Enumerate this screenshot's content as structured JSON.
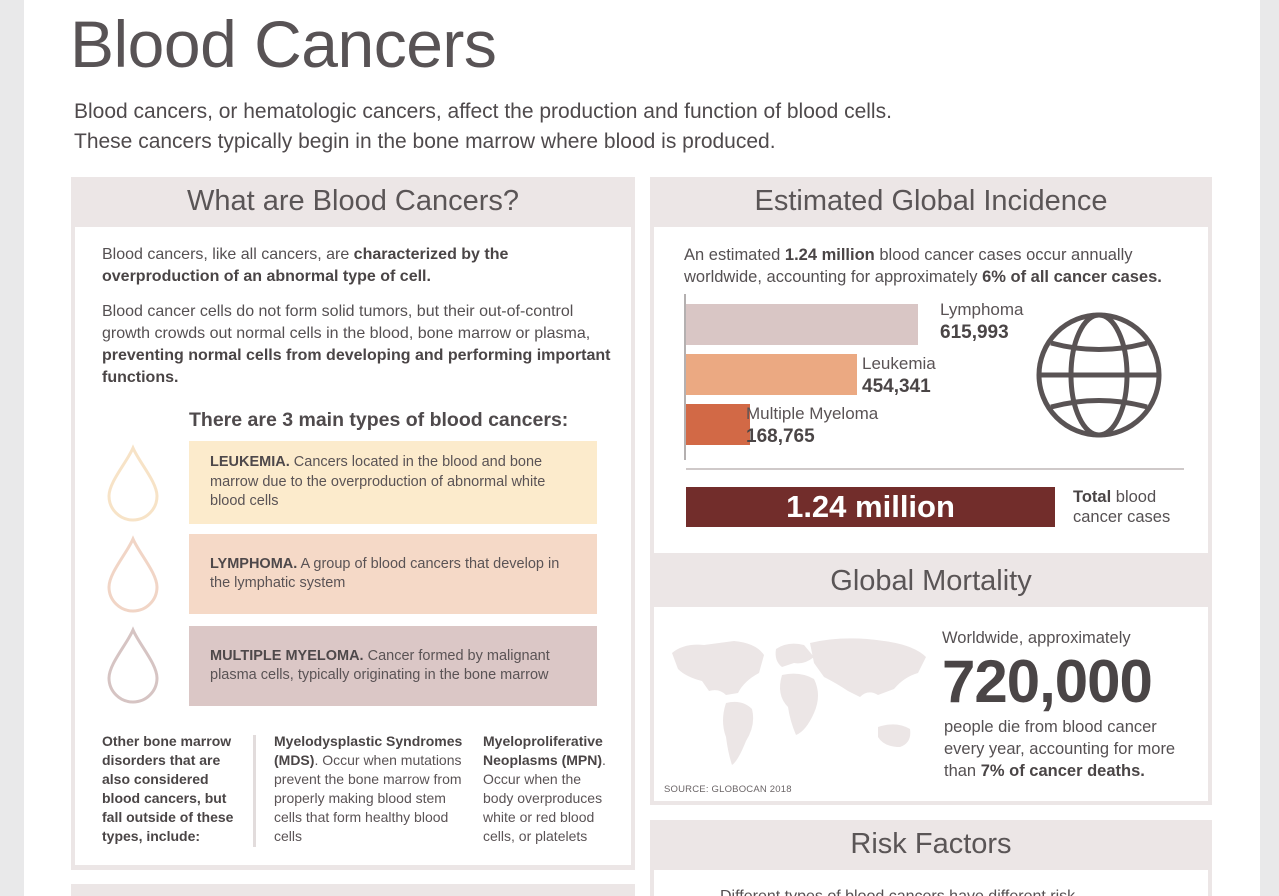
{
  "title": "Blood Cancers",
  "intro": {
    "line1": "Blood cancers, or hematologic cancers, affect the production and function of blood cells.",
    "line2": "These cancers typically begin in the bone marrow where blood is produced."
  },
  "what": {
    "heading": "What are Blood Cancers?",
    "p1_plain": "Blood cancers, like all cancers, are ",
    "p1_bold": "characterized by the overproduction of an abnormal type of cell.",
    "p2_plain": "Blood cancer cells do not form solid tumors, but their out-of-control growth crowds out normal cells in the blood, bone marrow or plasma, ",
    "p2_bold": "preventing normal cells from developing and performing important functions.",
    "types_heading": "There are 3 main types of blood cancers:",
    "types": [
      {
        "name": "LEUKEMIA.",
        "desc": " Cancers located in the blood and bone marrow due to the overproduction of abnormal white blood cells",
        "color": "#fcebcc",
        "drop_color": "#f7e3c7"
      },
      {
        "name": "LYMPHOMA.",
        "desc": " A group of blood cancers that develop in the lymphatic system",
        "color": "#f5d9c7",
        "drop_color": "#f1d5c6"
      },
      {
        "name": "MULTIPLE MYELOMA.",
        "desc": " Cancer formed by malignant plasma cells, typically originating in the bone marrow",
        "color": "#dbc7c6",
        "drop_color": "#d6c4c3"
      }
    ],
    "other_heading": "Other bone marrow disorders that are also considered blood cancers, but fall outside of these types, include:",
    "mds_bold": "Myelodysplastic Syndromes (MDS)",
    "mds_plain": ". Occur when mutations prevent the bone marrow from properly making blood stem cells that form healthy blood cells",
    "mpn_bold": "Myeloproliferative Neoplasms (MPN)",
    "mpn_plain": ". Occur when the body overproduces white or red blood cells, or platelets"
  },
  "incidence": {
    "heading": "Estimated Global Incidence",
    "t1": "An estimated ",
    "t1_bold": "1.24 million",
    "t2": " blood cancer cases occur annually worldwide, accounting for approximately ",
    "t2_bold": "6% of all cancer cases.",
    "total_value": "1.24 million",
    "total_bold": "Total",
    "total_rest": " blood cancer cases",
    "globe_icon": "globe-icon"
  },
  "chart_data": {
    "type": "bar",
    "categories": [
      "Lymphoma",
      "Leukemia",
      "Multiple Myeloma"
    ],
    "values": [
      615993,
      454341,
      168765
    ],
    "value_labels": [
      "615,993",
      "454,341",
      "168,765"
    ],
    "colors": [
      "#d9c6c5",
      "#eba982",
      "#d26946"
    ]
  },
  "mortality": {
    "heading": "Global Mortality",
    "pre": "Worldwide, approximately",
    "big": "720,000",
    "post1": "people die from blood cancer every year, accounting for more than ",
    "post_bold": "7% of cancer deaths.",
    "source": "SOURCE: GLOBOCAN 2018"
  },
  "risk": {
    "heading": "Risk Factors",
    "text": "Different types of blood cancers have different risk"
  }
}
